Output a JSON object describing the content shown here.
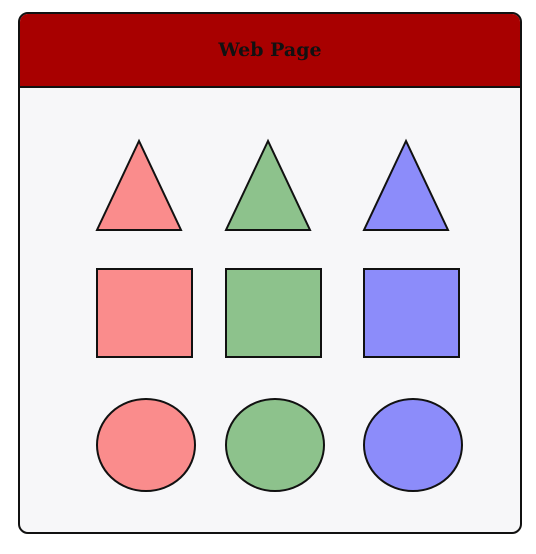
{
  "page": {
    "title": "Web Page"
  },
  "colors": {
    "header": "#a80000",
    "background": "#f7f7f9",
    "red_fill": "#fa8c8c",
    "green_fill": "#8dc28c",
    "blue_fill": "#8c8cfa",
    "stroke": "#111111"
  },
  "shapes": [
    {
      "kind": "triangle",
      "color": "red"
    },
    {
      "kind": "triangle",
      "color": "green"
    },
    {
      "kind": "triangle",
      "color": "blue"
    },
    {
      "kind": "square",
      "color": "red"
    },
    {
      "kind": "square",
      "color": "green"
    },
    {
      "kind": "square",
      "color": "blue"
    },
    {
      "kind": "circle",
      "color": "red"
    },
    {
      "kind": "circle",
      "color": "green"
    },
    {
      "kind": "circle",
      "color": "blue"
    }
  ]
}
